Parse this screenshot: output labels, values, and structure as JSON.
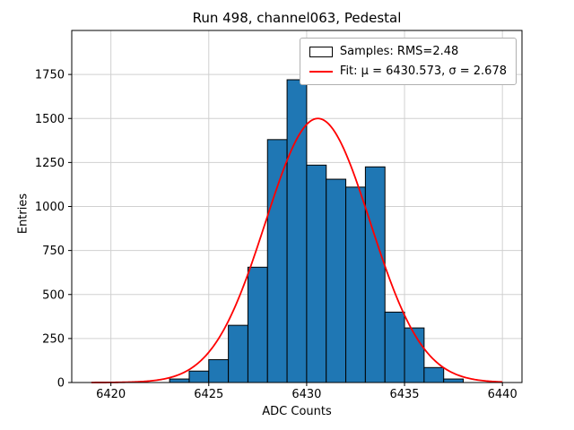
{
  "chart_data": {
    "type": "bar",
    "title": "Run 498, channel063, Pedestal",
    "xlabel": "ADC Counts",
    "ylabel": "Entries",
    "xlim": [
      6418,
      6441
    ],
    "ylim": [
      0,
      2000
    ],
    "xticks": [
      6420,
      6425,
      6430,
      6435,
      6440
    ],
    "yticks": [
      0,
      250,
      500,
      750,
      1000,
      1250,
      1500,
      1750
    ],
    "grid": true,
    "grid_color": "#d0d0d0",
    "bin_width": 1,
    "bin_left_edges": [
      6423,
      6424,
      6425,
      6426,
      6427,
      6428,
      6429,
      6430,
      6431,
      6432,
      6433,
      6434,
      6435,
      6436,
      6437
    ],
    "values": [
      20,
      65,
      130,
      325,
      655,
      1380,
      1720,
      1235,
      1155,
      1110,
      1225,
      400,
      310,
      85,
      20
    ],
    "bar_color": "#1f77b4",
    "bar_edge_color": "#000000",
    "fit": {
      "mu": 6430.573,
      "sigma": 2.678,
      "amplitude": 1500,
      "x_start": 6419,
      "x_end": 6440,
      "color": "#ff0000"
    },
    "legend": {
      "position": "top-right",
      "entries": [
        {
          "label": "Samples: RMS=2.48",
          "type": "patch",
          "color": "#1f77b4"
        },
        {
          "label": "Fit: μ = 6430.573, σ = 2.678",
          "type": "line",
          "color": "#ff0000"
        }
      ]
    }
  }
}
